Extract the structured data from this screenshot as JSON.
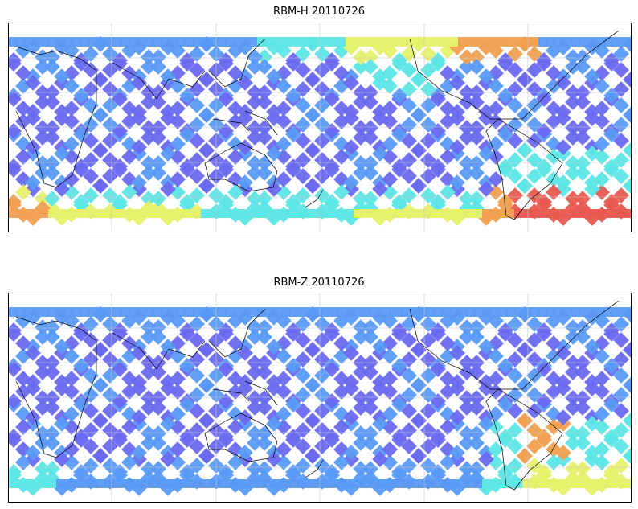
{
  "panels": [
    {
      "title": "RBM-H 20110726",
      "variant": "H"
    },
    {
      "title": "RBM-Z 20110726",
      "variant": "Z"
    }
  ],
  "colors": {
    "low": "#6a6af0",
    "mid_low": "#5a9af5",
    "mid": "#5de6e6",
    "mid_high": "#e6f06a",
    "high": "#f0a050",
    "max": "#e85a50",
    "coast": "#000000",
    "grid": "#c8c8c8",
    "frame": "#000000"
  }
}
